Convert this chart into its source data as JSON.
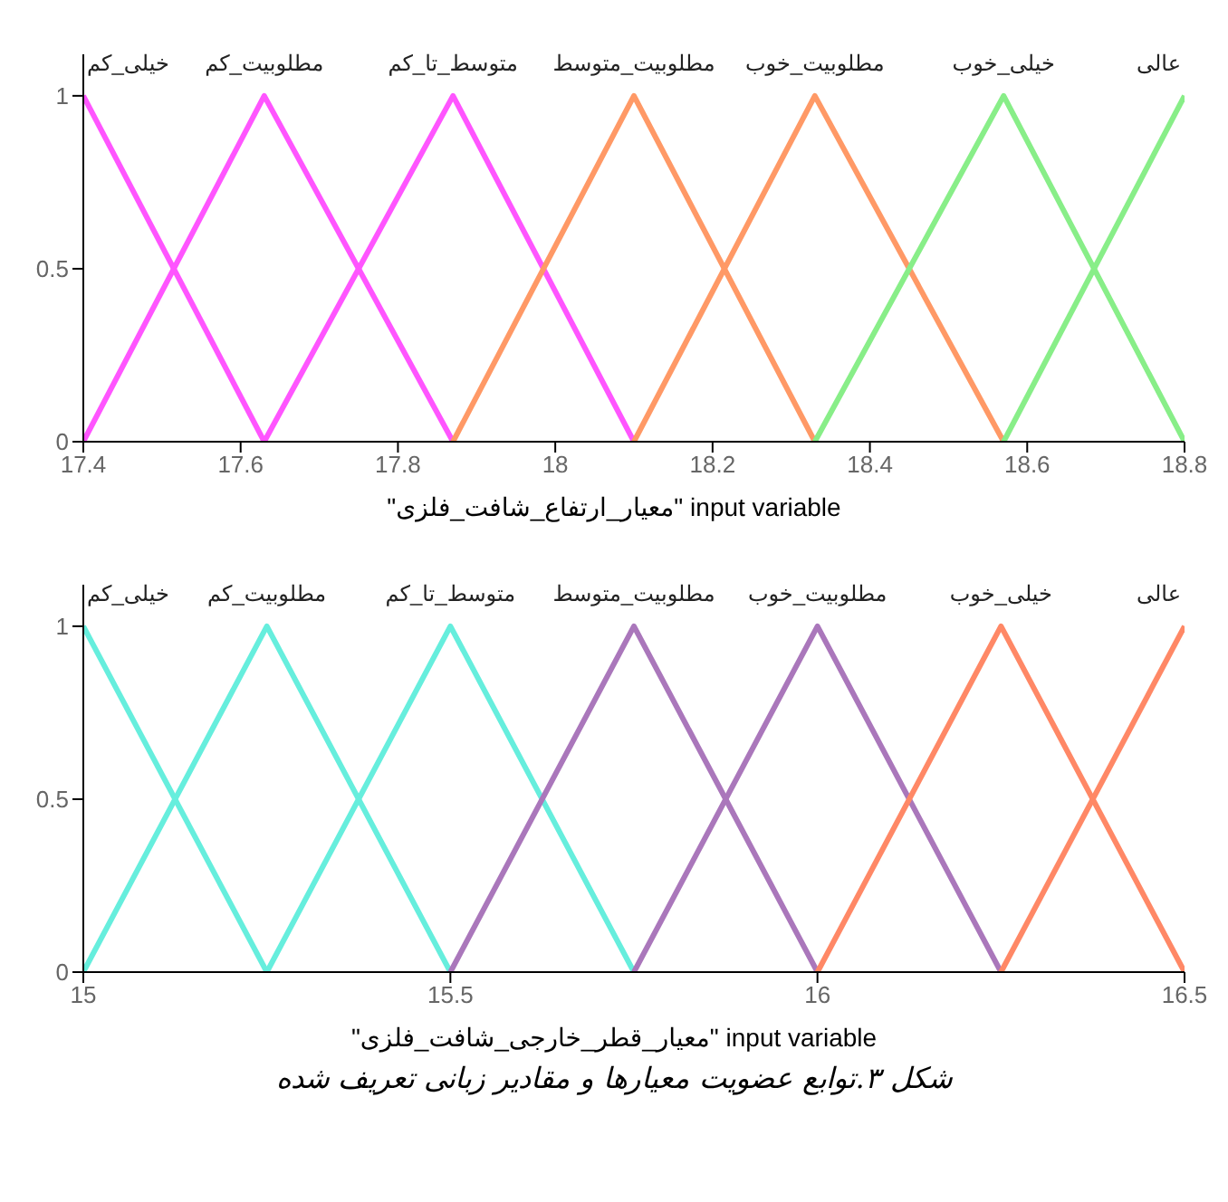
{
  "chart_data": [
    {
      "type": "line",
      "xlabel": "input variable \"معیار_ارتفاع_شافت_فلزی\"",
      "xlim": [
        17.4,
        18.8
      ],
      "xticks": [
        17.4,
        17.6,
        17.8,
        18,
        18.2,
        18.4,
        18.6,
        18.8
      ],
      "ylim": [
        0,
        1.12
      ],
      "yticks": [
        0,
        0.5,
        1
      ],
      "grid": false,
      "legend": false,
      "marker": "none",
      "line_style": "solid",
      "series": [
        {
          "name": "خیلی_کم",
          "color": "#ff55ff",
          "x": [
            17.4,
            17.63
          ],
          "values": [
            1,
            0
          ]
        },
        {
          "name": "مطلوبیت_کم",
          "color": "#ff55ff",
          "x": [
            17.4,
            17.63,
            17.87
          ],
          "values": [
            0,
            1,
            0
          ]
        },
        {
          "name": "متوسط_تا_کم",
          "color": "#ff55ff",
          "x": [
            17.63,
            17.87,
            18.1
          ],
          "values": [
            0,
            1,
            0
          ]
        },
        {
          "name": "مطلوبیت_متوسط",
          "color": "#ff9966",
          "x": [
            17.87,
            18.1,
            18.33
          ],
          "values": [
            0,
            1,
            0
          ]
        },
        {
          "name": "مطلوبیت_خوب",
          "color": "#ff9966",
          "x": [
            18.1,
            18.33,
            18.57
          ],
          "values": [
            0,
            1,
            0
          ]
        },
        {
          "name": "خیلی_خوب",
          "color": "#88ee88",
          "x": [
            18.33,
            18.57,
            18.8
          ],
          "values": [
            0,
            1,
            0
          ]
        },
        {
          "name": "عالی",
          "color": "#88ee88",
          "x": [
            18.57,
            18.8
          ],
          "values": [
            0,
            1
          ]
        }
      ]
    },
    {
      "type": "line",
      "xlabel": "input variable \"معیار_قطر_خارجی_شافت_فلزی\"",
      "annotations": [
        "شکل ۳.توابع عضویت معیارها و مقادیر زبانی تعریف شده"
      ],
      "xlim": [
        15,
        16.5
      ],
      "xticks": [
        15,
        15.5,
        16,
        16.5
      ],
      "ylim": [
        0,
        1.12
      ],
      "yticks": [
        0,
        0.5,
        1
      ],
      "grid": false,
      "legend": false,
      "marker": "none",
      "line_style": "solid",
      "series": [
        {
          "name": "خیلی_کم",
          "color": "#66eedd",
          "x": [
            15,
            15.25
          ],
          "values": [
            1,
            0
          ]
        },
        {
          "name": "مطلوبیت_کم",
          "color": "#66eedd",
          "x": [
            15,
            15.25,
            15.5
          ],
          "values": [
            0,
            1,
            0
          ]
        },
        {
          "name": "متوسط_تا_کم",
          "color": "#66eedd",
          "x": [
            15.25,
            15.5,
            15.75
          ],
          "values": [
            0,
            1,
            0
          ]
        },
        {
          "name": "مطلوبیت_متوسط",
          "color": "#aa77bb",
          "x": [
            15.5,
            15.75,
            16
          ],
          "values": [
            0,
            1,
            0
          ]
        },
        {
          "name": "مطلوبیت_خوب",
          "color": "#aa77bb",
          "x": [
            15.75,
            16,
            16.25
          ],
          "values": [
            0,
            1,
            0
          ]
        },
        {
          "name": "خیلی_خوب",
          "color": "#ff8866",
          "x": [
            16,
            16.25,
            16.5
          ],
          "values": [
            0,
            1,
            0
          ]
        },
        {
          "name": "عالی",
          "color": "#ff8866",
          "x": [
            16.25,
            16.5
          ],
          "values": [
            0,
            1
          ]
        }
      ]
    }
  ]
}
